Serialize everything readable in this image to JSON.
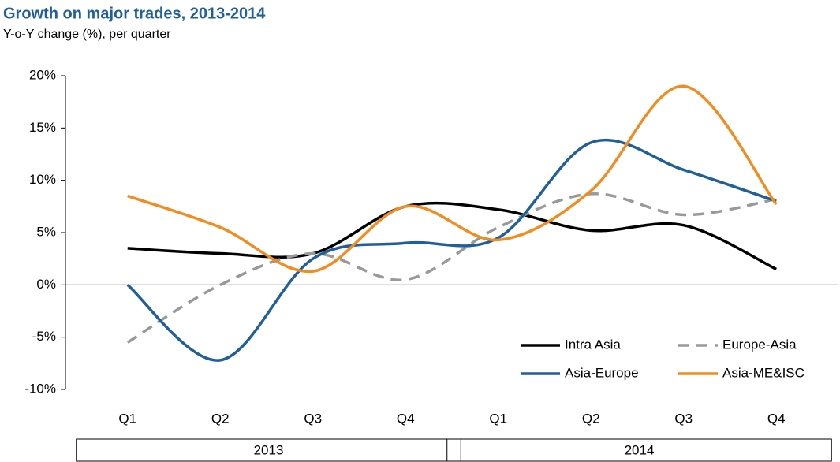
{
  "chart_data": {
    "type": "line",
    "title": "Growth on major trades, 2013-2014",
    "subtitle": "Y-o-Y change (%), per quarter",
    "categories": [
      "Q1",
      "Q2",
      "Q3",
      "Q4",
      "Q1",
      "Q2",
      "Q3",
      "Q4"
    ],
    "category_groups": [
      "2013",
      "2014"
    ],
    "series": [
      {
        "name": "Intra Asia",
        "color": "#000000",
        "dash": false,
        "values": [
          3.5,
          3.0,
          3.0,
          7.5,
          7.2,
          5.2,
          5.7,
          1.5
        ]
      },
      {
        "name": "Europe-Asia",
        "color": "#999999",
        "dash": true,
        "values": [
          -5.5,
          0.0,
          3.0,
          0.5,
          5.5,
          8.7,
          6.7,
          8.2
        ]
      },
      {
        "name": "Asia-Europe",
        "color": "#1f5f9a",
        "dash": false,
        "values": [
          0.0,
          -7.2,
          2.5,
          4.0,
          4.5,
          13.6,
          11.0,
          8.0
        ]
      },
      {
        "name": "Asia-ME&ISC",
        "color": "#f28c1e",
        "dash": false,
        "values": [
          8.5,
          5.5,
          1.3,
          7.5,
          4.3,
          9.0,
          19.0,
          7.7
        ]
      }
    ],
    "ylim": [
      -10,
      20
    ],
    "yticks": [
      {
        "value": -10,
        "label": "-10%"
      },
      {
        "value": -5,
        "label": "-5%"
      },
      {
        "value": 0,
        "label": "0%"
      },
      {
        "value": 5,
        "label": "5%"
      },
      {
        "value": 10,
        "label": "10%"
      },
      {
        "value": 15,
        "label": "15%"
      },
      {
        "value": 20,
        "label": "20%"
      }
    ],
    "legend": "lower right"
  }
}
